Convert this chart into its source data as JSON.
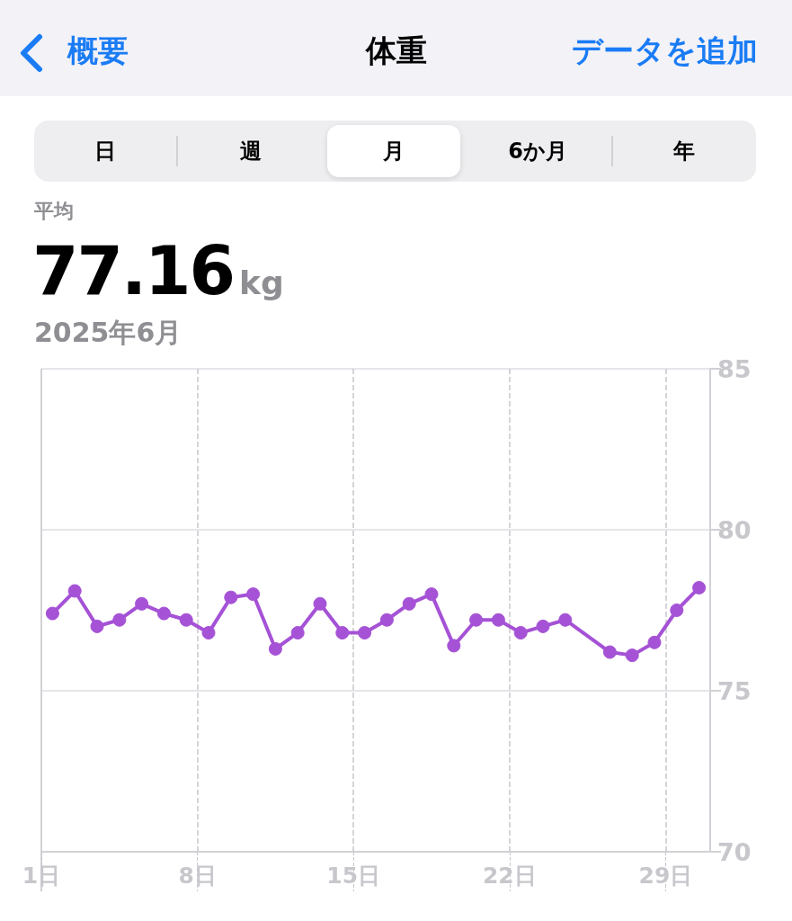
{
  "chart_data": {
    "type": "line",
    "title": "体重",
    "annotations": [
      "概要",
      "データを追加",
      "日",
      "週",
      "月",
      "6か月",
      "年",
      "平均",
      "77.16",
      "kg",
      "2025年6月"
    ],
    "x": [
      1.5,
      2.5,
      3.5,
      4.5,
      5.5,
      6.5,
      7.5,
      8.5,
      9.5,
      10.5,
      11.5,
      12.5,
      13.5,
      14.5,
      15.5,
      16.5,
      17.5,
      18.5,
      19.5,
      20.5,
      21.5,
      22.5,
      23.5,
      24.5,
      26.5,
      27.5,
      28.5,
      29.5,
      30.5
    ],
    "series": [
      {
        "color": "#a552d6",
        "values": [
          77.4,
          78.1,
          77.0,
          77.2,
          77.7,
          77.4,
          77.2,
          76.8,
          77.9,
          78.0,
          76.3,
          76.8,
          77.7,
          76.8,
          76.8,
          77.2,
          77.7,
          78.0,
          76.4,
          77.2,
          77.2,
          76.8,
          77.0,
          77.2,
          76.2,
          76.1,
          76.5,
          77.5,
          78.2
        ]
      }
    ],
    "xlim": [
      1,
      31
    ],
    "xticks": [
      {
        "value": 1,
        "label": "1日"
      },
      {
        "value": 8,
        "label": "8日"
      },
      {
        "value": 15,
        "label": "15日"
      },
      {
        "value": 22,
        "label": "22日"
      },
      {
        "value": 29,
        "label": "29日"
      }
    ],
    "ylim": [
      70,
      85
    ],
    "yticks": [
      70,
      75,
      80,
      85
    ],
    "grid": true,
    "marker": "circle",
    "line_style": "solid"
  }
}
